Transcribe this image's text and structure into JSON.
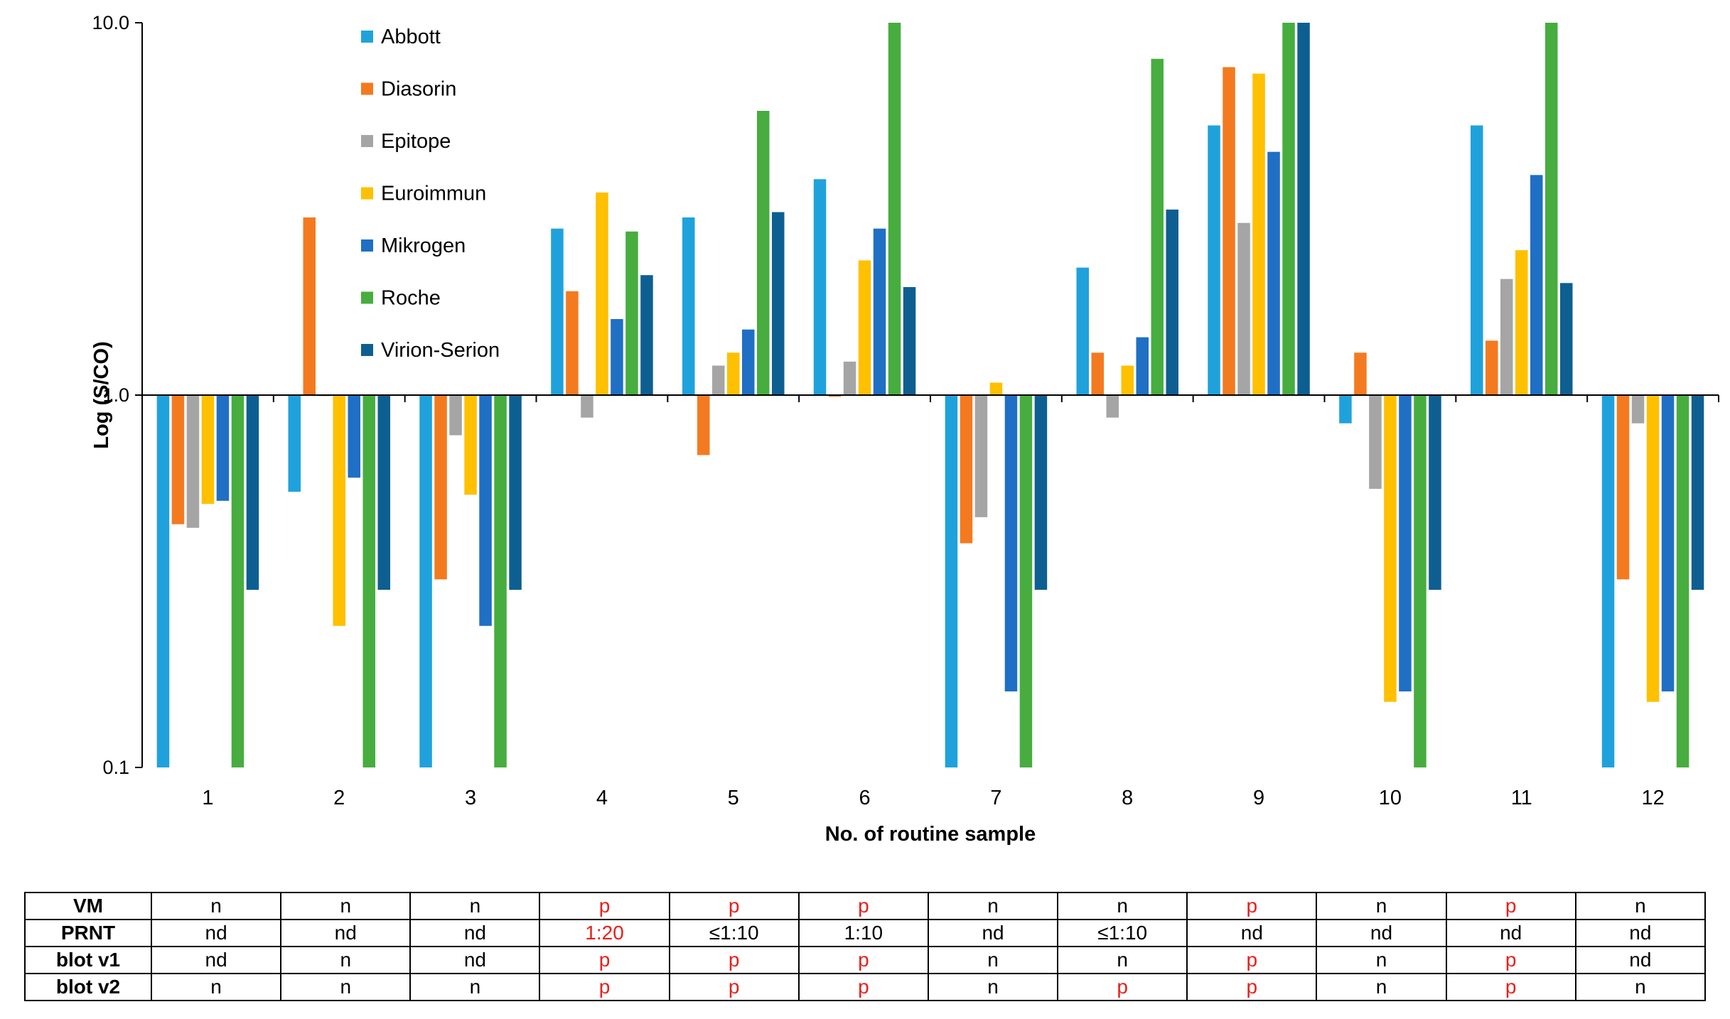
{
  "chart_data": {
    "type": "bar",
    "title": "",
    "xlabel": "No. of routine sample",
    "ylabel": "Log (S/CO)",
    "yscale": "log",
    "ylim": [
      0.1,
      10.0
    ],
    "baseline": 1.0,
    "yticks": [
      "0.1",
      "1.0",
      "10.0"
    ],
    "categories": [
      "1",
      "2",
      "3",
      "4",
      "5",
      "6",
      "7",
      "8",
      "9",
      "10",
      "11",
      "12"
    ],
    "legend_position": "top-left",
    "series": [
      {
        "name": "Abbott",
        "color": "#1FA2DC",
        "values": [
          0.1,
          0.55,
          0.1,
          2.8,
          3.0,
          3.8,
          0.1,
          2.2,
          5.3,
          0.84,
          5.3,
          0.1
        ]
      },
      {
        "name": "Diasorin",
        "color": "#F47A20",
        "values": [
          0.45,
          3.0,
          0.32,
          1.9,
          0.69,
          0.99,
          0.4,
          1.3,
          7.6,
          1.3,
          1.4,
          0.32
        ]
      },
      {
        "name": "Epitope",
        "color": "#A5A5A5",
        "values": [
          0.44,
          1.0,
          0.78,
          0.87,
          1.2,
          1.23,
          0.47,
          0.87,
          2.9,
          0.56,
          2.05,
          0.84
        ]
      },
      {
        "name": "Euroimmun",
        "color": "#FFC000",
        "values": [
          0.51,
          0.24,
          0.54,
          3.5,
          1.3,
          2.3,
          1.08,
          1.2,
          7.3,
          0.15,
          2.45,
          0.15
        ]
      },
      {
        "name": "Mikrogen",
        "color": "#1F6FC5",
        "values": [
          0.52,
          0.6,
          0.24,
          1.6,
          1.5,
          2.8,
          0.16,
          1.43,
          4.5,
          0.16,
          3.9,
          0.16
        ]
      },
      {
        "name": "Roche",
        "color": "#47AD3F",
        "values": [
          0.1,
          0.1,
          0.1,
          2.75,
          5.8,
          10.0,
          0.1,
          8.0,
          10.0,
          0.1,
          10.0,
          0.1
        ]
      },
      {
        "name": "Virion-Serion",
        "color": "#0E5F91",
        "values": [
          0.3,
          0.3,
          0.3,
          2.1,
          3.1,
          1.95,
          0.3,
          3.15,
          10.0,
          0.3,
          2.0,
          0.3
        ]
      }
    ]
  },
  "table": {
    "rows": [
      {
        "label": "VM",
        "cells": [
          {
            "text": "n",
            "positive": false
          },
          {
            "text": "n",
            "positive": false
          },
          {
            "text": "n",
            "positive": false
          },
          {
            "text": "p",
            "positive": true
          },
          {
            "text": "p",
            "positive": true
          },
          {
            "text": "p",
            "positive": true
          },
          {
            "text": "n",
            "positive": false
          },
          {
            "text": "n",
            "positive": false
          },
          {
            "text": "p",
            "positive": true
          },
          {
            "text": "n",
            "positive": false
          },
          {
            "text": "p",
            "positive": true
          },
          {
            "text": "n",
            "positive": false
          }
        ]
      },
      {
        "label": "PRNT",
        "cells": [
          {
            "text": "nd",
            "positive": false
          },
          {
            "text": "nd",
            "positive": false
          },
          {
            "text": "nd",
            "positive": false
          },
          {
            "text": "1:20",
            "positive": true
          },
          {
            "text": "≤1:10",
            "positive": false
          },
          {
            "text": "1:10",
            "positive": false
          },
          {
            "text": "nd",
            "positive": false
          },
          {
            "text": "≤1:10",
            "positive": false
          },
          {
            "text": "nd",
            "positive": false
          },
          {
            "text": "nd",
            "positive": false
          },
          {
            "text": "nd",
            "positive": false
          },
          {
            "text": "nd",
            "positive": false
          }
        ]
      },
      {
        "label": "blot v1",
        "cells": [
          {
            "text": "nd",
            "positive": false
          },
          {
            "text": "n",
            "positive": false
          },
          {
            "text": "nd",
            "positive": false
          },
          {
            "text": "p",
            "positive": true
          },
          {
            "text": "p",
            "positive": true
          },
          {
            "text": "p",
            "positive": true
          },
          {
            "text": "n",
            "positive": false
          },
          {
            "text": "n",
            "positive": false
          },
          {
            "text": "p",
            "positive": true
          },
          {
            "text": "n",
            "positive": false
          },
          {
            "text": "p",
            "positive": true
          },
          {
            "text": "nd",
            "positive": false
          }
        ]
      },
      {
        "label": "blot v2",
        "cells": [
          {
            "text": "n",
            "positive": false
          },
          {
            "text": "n",
            "positive": false
          },
          {
            "text": "n",
            "positive": false
          },
          {
            "text": "p",
            "positive": true
          },
          {
            "text": "p",
            "positive": true
          },
          {
            "text": "p",
            "positive": true
          },
          {
            "text": "n",
            "positive": false
          },
          {
            "text": "p",
            "positive": true
          },
          {
            "text": "p",
            "positive": true
          },
          {
            "text": "n",
            "positive": false
          },
          {
            "text": "p",
            "positive": true
          },
          {
            "text": "n",
            "positive": false
          }
        ]
      }
    ]
  }
}
